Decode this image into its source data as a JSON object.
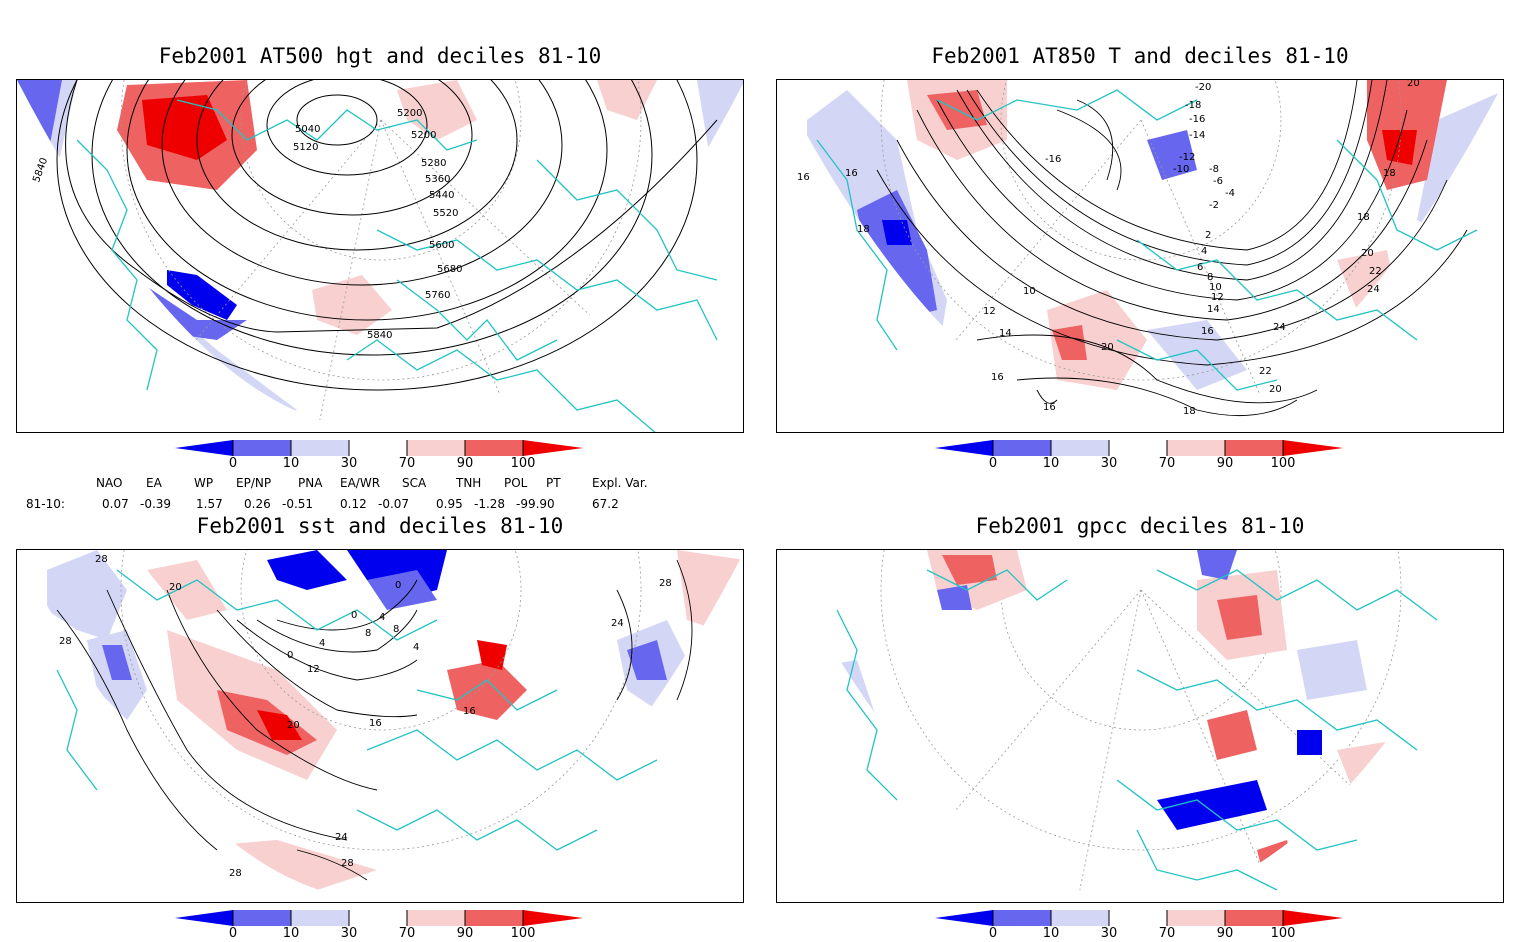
{
  "panels": [
    {
      "title": "Feb2001 AT500 hgt and deciles 81-10",
      "contour_labels": [
        "5040",
        "5120",
        "5200",
        "5200",
        "5280",
        "5360",
        "5440",
        "5520",
        "5600",
        "5680",
        "5760",
        "5840",
        "5840"
      ]
    },
    {
      "title": "Feb2001 AT850 T and deciles 81-10",
      "contour_labels": [
        "-20",
        "-18",
        "-16",
        "-16",
        "-14",
        "-12",
        "-10",
        "-8",
        "-6",
        "-4",
        "-2",
        "2",
        "4",
        "6",
        "8",
        "10",
        "10",
        "12",
        "12",
        "14",
        "14",
        "16",
        "16",
        "16",
        "16",
        "16",
        "18",
        "18",
        "18",
        "18",
        "20",
        "20",
        "20",
        "20",
        "22",
        "22",
        "24",
        "24"
      ]
    },
    {
      "title": "Feb2001 sst and deciles 81-10",
      "contour_labels": [
        "28",
        "28",
        "20",
        "0",
        "0",
        "0",
        "4",
        "4",
        "8",
        "8",
        "12",
        "16",
        "20",
        "16",
        "24",
        "24",
        "28",
        "28",
        "28",
        "4"
      ]
    },
    {
      "title": "Feb2001 gpcc deciles 81-10",
      "contour_labels": []
    }
  ],
  "colorbar": {
    "ticks": [
      "0",
      "10",
      "30",
      "70",
      "90",
      "100"
    ],
    "colors": [
      "#0000ee",
      "#6666ee",
      "#d4d6f6",
      "#ffffff",
      "#f8d0d0",
      "#ee6262",
      "#ee0000"
    ]
  },
  "teleconnections": {
    "headers": [
      "NAO",
      "EA",
      "WP",
      "EP/NP",
      "PNA",
      "EA/WR",
      "SCA",
      "TNH",
      "POL",
      "PT",
      "Expl. Var."
    ],
    "row_label": "81-10:",
    "values": [
      "0.07",
      "-0.39",
      "1.57",
      "0.26",
      "-0.51",
      "0.12",
      "-0.07",
      "0.95",
      "-1.28",
      "-99.90",
      "67.2"
    ]
  },
  "colors": {
    "coast": "#22c3c3",
    "contour": "#000000",
    "grid": "#999999"
  }
}
